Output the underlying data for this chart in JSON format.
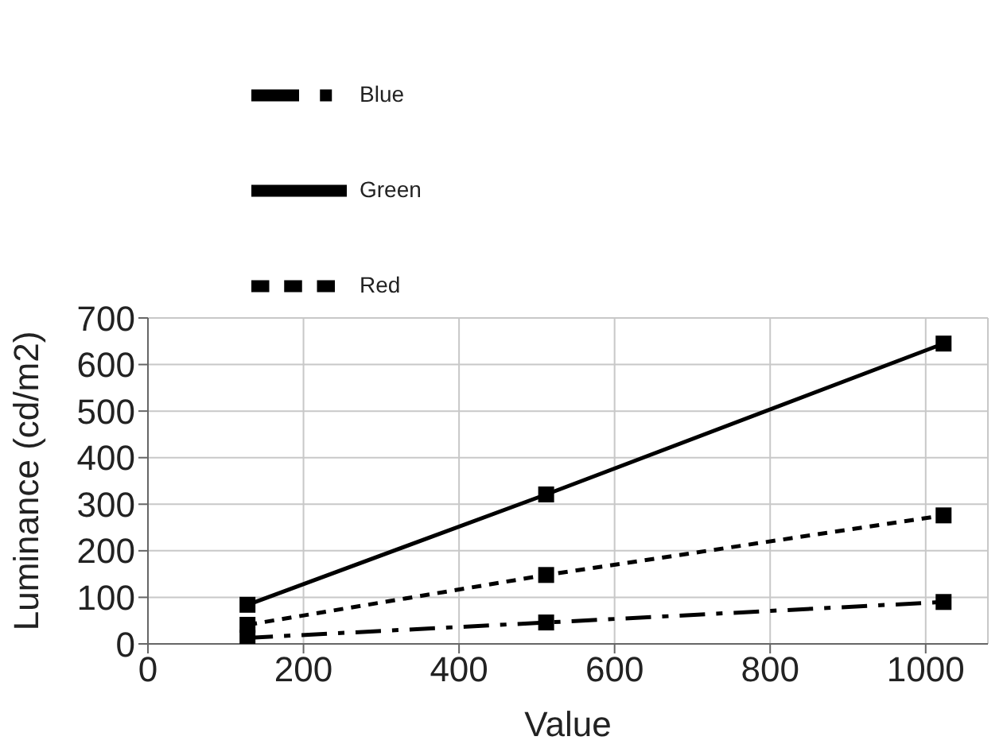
{
  "chart_data": {
    "type": "line",
    "xlabel": "Value",
    "ylabel": "Luminance (cd/m2)",
    "x": [
      128,
      512,
      1023
    ],
    "series": [
      {
        "name": "Red",
        "color": "#000000",
        "line_style": "dotted",
        "values": [
          41,
          148,
          276
        ]
      },
      {
        "name": "Green",
        "color": "#000000",
        "line_style": "solid",
        "values": [
          84,
          321,
          645
        ]
      },
      {
        "name": "Blue",
        "color": "#000000",
        "line_style": "dashdot",
        "values": [
          13,
          46,
          90
        ]
      }
    ],
    "xlim": [
      0,
      1080
    ],
    "xticks": [
      0,
      200,
      400,
      600,
      800,
      1000
    ],
    "ylim": [
      0,
      700
    ],
    "yticks": [
      0,
      100,
      200,
      300,
      400,
      500,
      600,
      700
    ],
    "grid": true,
    "legend": "top left",
    "marker": "square"
  }
}
